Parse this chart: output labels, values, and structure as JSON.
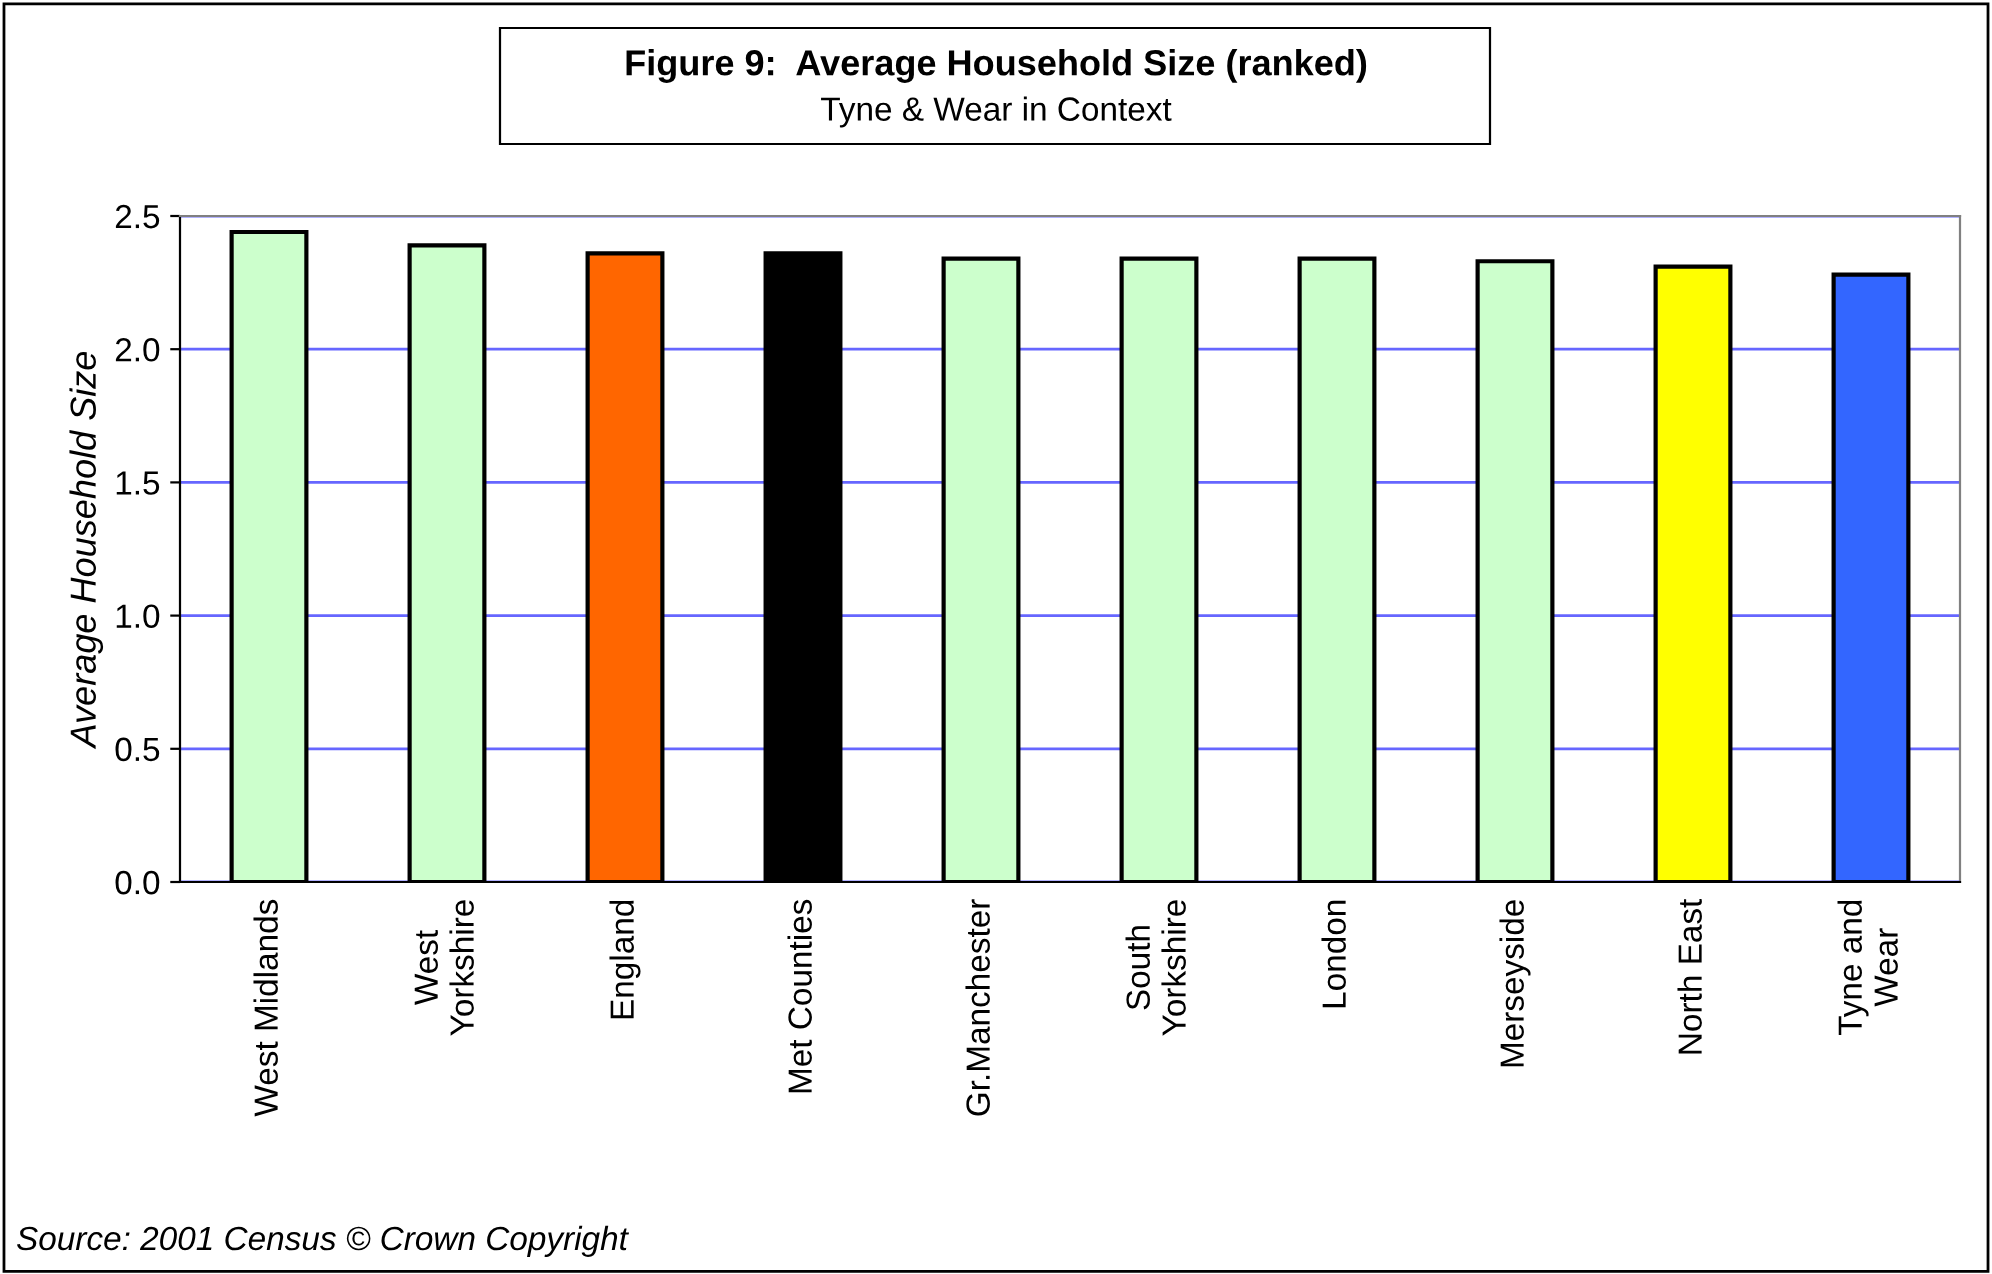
{
  "chart_data": {
    "type": "bar",
    "title": "Figure 9:  Average Household Size (ranked)",
    "subtitle": "Tyne & Wear in Context",
    "ylabel": "Average Household Size",
    "categories": [
      "West Midlands",
      "West\nYorkshire",
      "England",
      "Met Counties",
      "Gr.Manchester",
      "South\nYorkshire",
      "London",
      "Merseyside",
      "North East",
      "Tyne and\nWear"
    ],
    "values": [
      2.44,
      2.39,
      2.36,
      2.36,
      2.34,
      2.34,
      2.34,
      2.33,
      2.31,
      2.28
    ],
    "colors": [
      "#ccffcc",
      "#ccffcc",
      "#ff6600",
      "#000000",
      "#ccffcc",
      "#ccffcc",
      "#ccffcc",
      "#ccffcc",
      "#ffff00",
      "#3366ff"
    ],
    "ylim": [
      0,
      2.5
    ],
    "yticks": [
      {
        "value": 0,
        "label": "0.0"
      },
      {
        "value": 0.5,
        "label": "0.5"
      },
      {
        "value": 1,
        "label": "1.0"
      },
      {
        "value": 1.5,
        "label": "1.5"
      },
      {
        "value": 2,
        "label": "2.0"
      },
      {
        "value": 2.5,
        "label": "2.5"
      }
    ],
    "grid": "y",
    "legend": false,
    "annotations": [
      "Source: 2001 Census © Crown Copyright"
    ]
  }
}
